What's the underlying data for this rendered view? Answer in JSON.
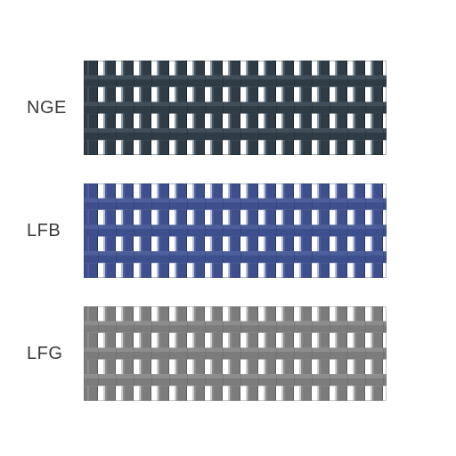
{
  "samples": [
    {
      "label": "NGE",
      "colors": {
        "dark": "#2f3b45",
        "mid": "#50616e",
        "light": "#94a0a8",
        "edge": "#1c242b"
      }
    },
    {
      "label": "LFB",
      "colors": {
        "dark": "#3d4f8c",
        "mid": "#5a6ea6",
        "light": "#b7c0d8",
        "edge": "#2a3764"
      }
    },
    {
      "label": "LFG",
      "colors": {
        "dark": "#7c7c7c",
        "mid": "#9a9a9a",
        "light": "#cdcdcd",
        "edge": "#5e5e5e"
      }
    }
  ],
  "geometry": {
    "viewW": 340,
    "viewH": 106,
    "cols": 17,
    "toothW": 12,
    "gapW": 8,
    "toothH": 14,
    "bandH": 11,
    "startX": 4,
    "bevel": 2
  }
}
